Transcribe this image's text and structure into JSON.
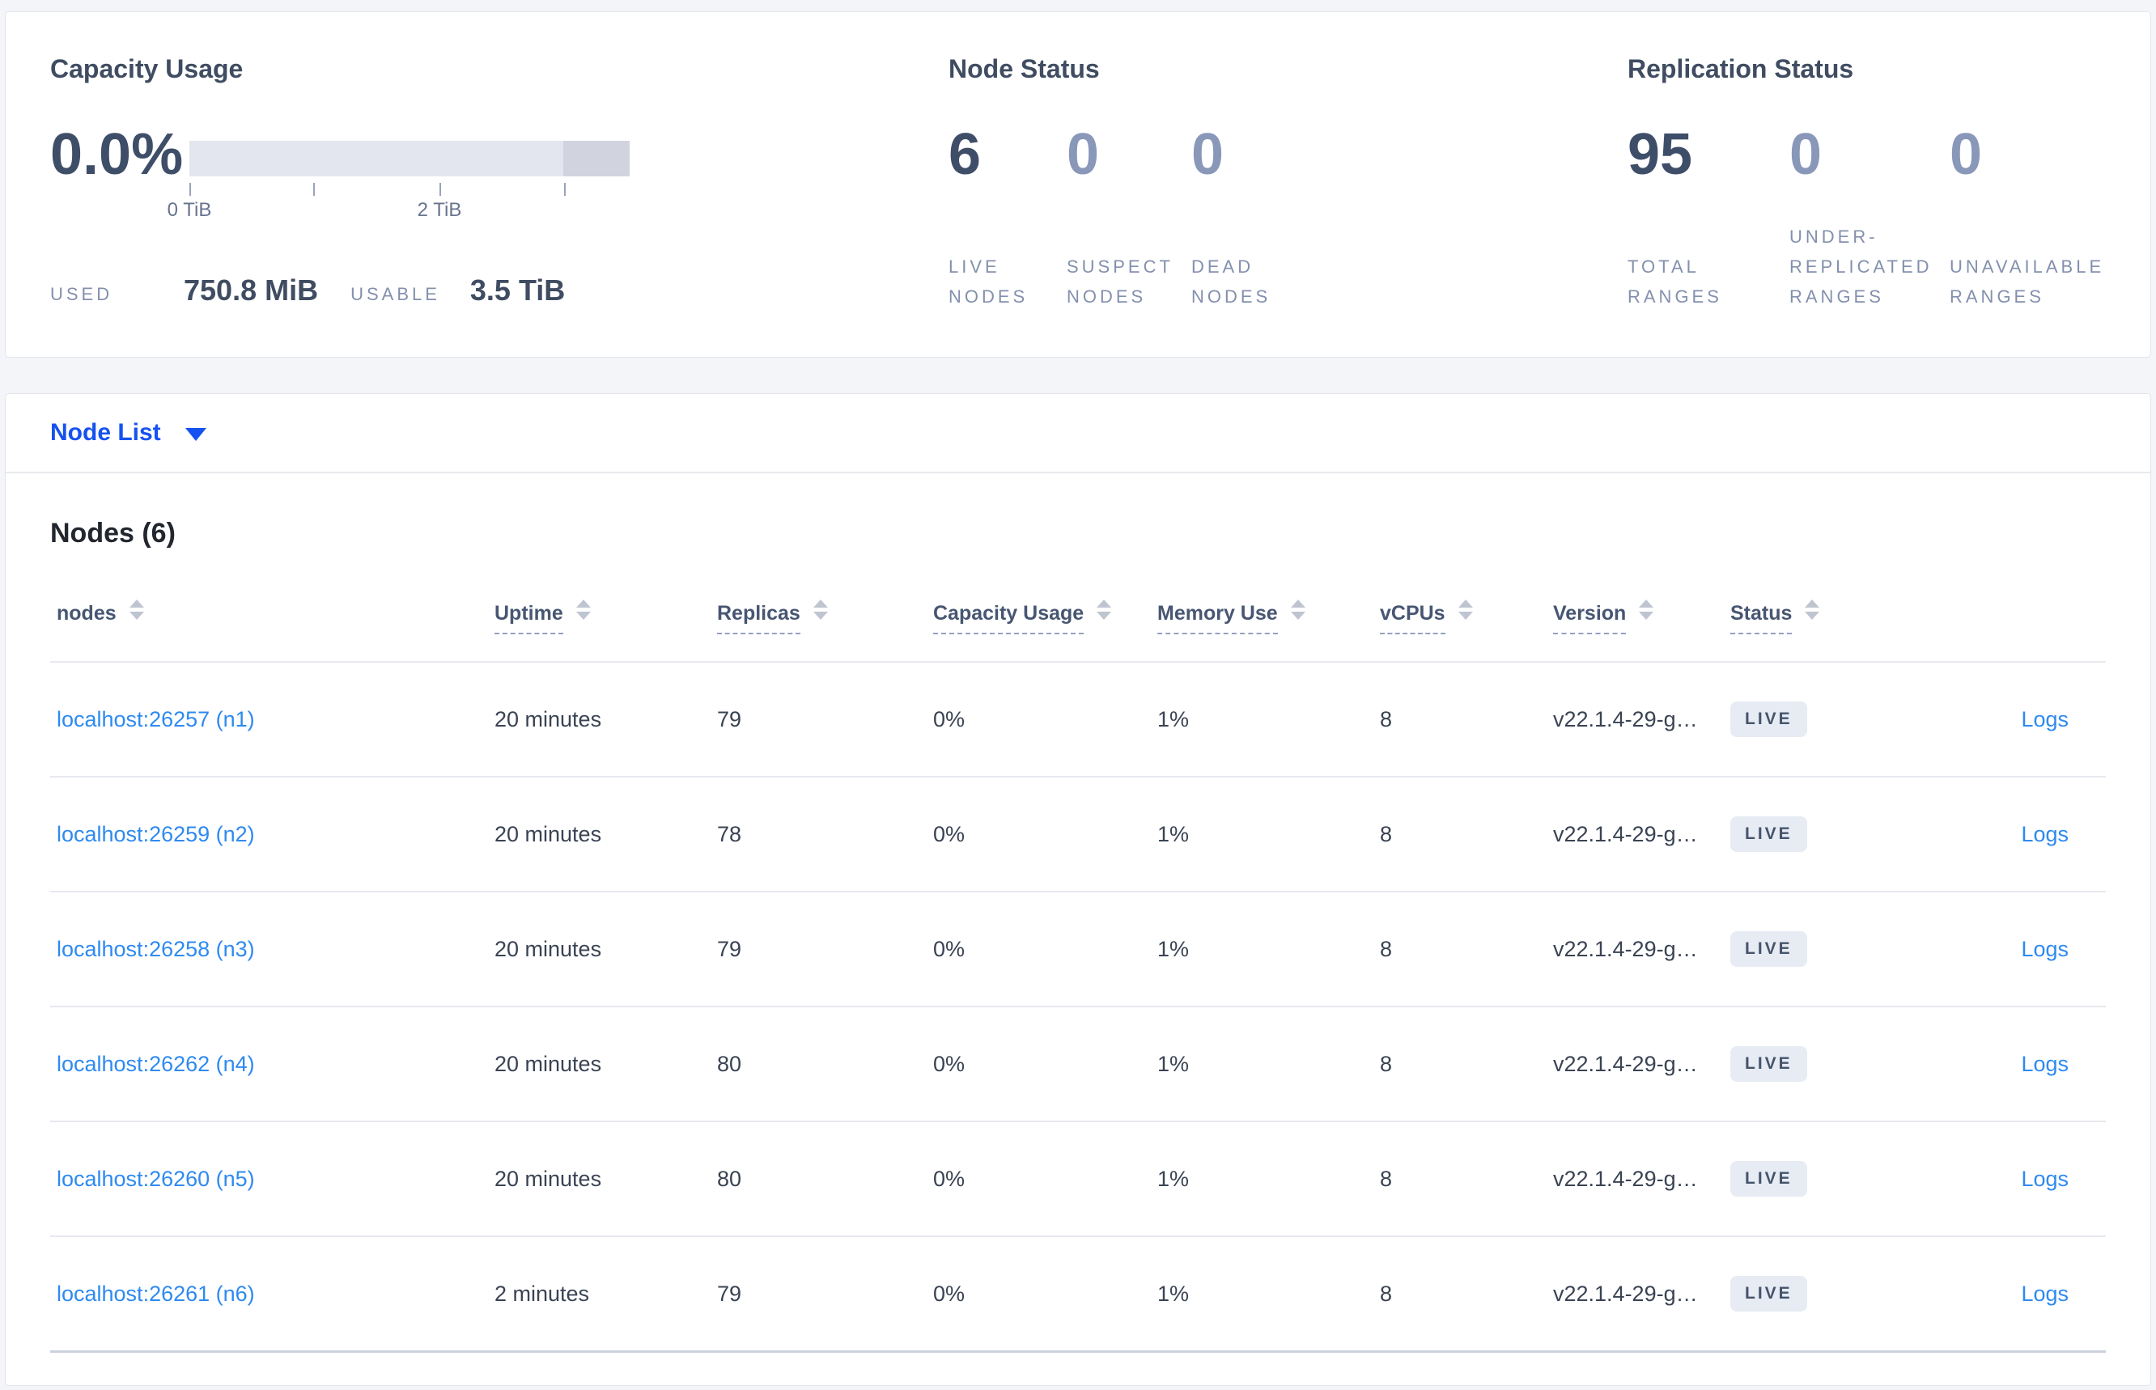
{
  "capacity_card": {
    "title": "Capacity Usage",
    "percent": "0.0%",
    "tick_labels": [
      "0 TiB",
      "2 TiB"
    ],
    "used_label": "USED",
    "used_value": "750.8 MiB",
    "usable_label": "USABLE",
    "usable_value": "3.5 TiB"
  },
  "node_status_card": {
    "title": "Node Status",
    "stats": [
      {
        "value": "6",
        "label": "LIVE NODES"
      },
      {
        "value": "0",
        "label": "SUSPECT NODES"
      },
      {
        "value": "0",
        "label": "DEAD NODES"
      }
    ]
  },
  "replication_card": {
    "title": "Replication Status",
    "stats": [
      {
        "value": "95",
        "label": "TOTAL RANGES"
      },
      {
        "value": "0",
        "label": "UNDER-REPLICATED RANGES"
      },
      {
        "value": "0",
        "label": "UNAVAILABLE RANGES"
      }
    ]
  },
  "node_list": {
    "selector_label": "Node List",
    "heading": "Nodes (6)",
    "columns": [
      {
        "key": "nodes",
        "label": "nodes",
        "underlined": false
      },
      {
        "key": "uptime",
        "label": "Uptime",
        "underlined": true
      },
      {
        "key": "replicas",
        "label": "Replicas",
        "underlined": true
      },
      {
        "key": "capacity-usage",
        "label": "Capacity Usage",
        "underlined": true
      },
      {
        "key": "memory-use",
        "label": "Memory Use",
        "underlined": true
      },
      {
        "key": "vcpus",
        "label": "vCPUs",
        "underlined": true
      },
      {
        "key": "version",
        "label": "Version",
        "underlined": true
      },
      {
        "key": "status",
        "label": "Status",
        "underlined": true
      },
      {
        "key": "logs",
        "label": "",
        "underlined": false
      }
    ],
    "rows": [
      {
        "node": "localhost:26257 (n1)",
        "uptime": "20 minutes",
        "replicas": "79",
        "capacity": "0%",
        "memory": "1%",
        "vcpus": "8",
        "version": "v22.1.4-29-g…",
        "status": "LIVE",
        "logs": "Logs"
      },
      {
        "node": "localhost:26259 (n2)",
        "uptime": "20 minutes",
        "replicas": "78",
        "capacity": "0%",
        "memory": "1%",
        "vcpus": "8",
        "version": "v22.1.4-29-g…",
        "status": "LIVE",
        "logs": "Logs"
      },
      {
        "node": "localhost:26258 (n3)",
        "uptime": "20 minutes",
        "replicas": "79",
        "capacity": "0%",
        "memory": "1%",
        "vcpus": "8",
        "version": "v22.1.4-29-g…",
        "status": "LIVE",
        "logs": "Logs"
      },
      {
        "node": "localhost:26262 (n4)",
        "uptime": "20 minutes",
        "replicas": "80",
        "capacity": "0%",
        "memory": "1%",
        "vcpus": "8",
        "version": "v22.1.4-29-g…",
        "status": "LIVE",
        "logs": "Logs"
      },
      {
        "node": "localhost:26260 (n5)",
        "uptime": "20 minutes",
        "replicas": "80",
        "capacity": "0%",
        "memory": "1%",
        "vcpus": "8",
        "version": "v22.1.4-29-g…",
        "status": "LIVE",
        "logs": "Logs"
      },
      {
        "node": "localhost:26261 (n6)",
        "uptime": "2 minutes",
        "replicas": "79",
        "capacity": "0%",
        "memory": "1%",
        "vcpus": "8",
        "version": "v22.1.4-29-g…",
        "status": "LIVE",
        "logs": "Logs"
      }
    ]
  },
  "colors": {
    "selector_blue": "#1652f0",
    "link_blue": "#2e8af0",
    "badge_background": "#e7ebf3",
    "capacity_bar_light": "#e4e6ef",
    "capacity_bar_dark": "#d1d4df",
    "stat_value_dark": "#3f4e68",
    "stat_value_muted": "#8997b9"
  }
}
